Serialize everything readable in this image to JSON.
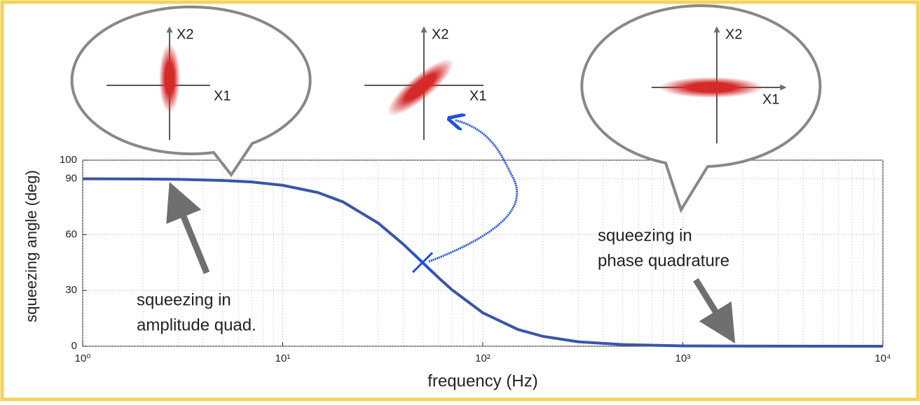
{
  "chart_data": {
    "type": "line",
    "x_label": "frequency (Hz)",
    "y_label": "squeezing angle (deg)",
    "log_x": true,
    "grid": true,
    "xlim": [
      1,
      10000
    ],
    "xticks": [
      {
        "value": 1,
        "label": "10⁰"
      },
      {
        "value": 10,
        "label": "10¹"
      },
      {
        "value": 100,
        "label": "10²"
      },
      {
        "value": 1000,
        "label": "10³"
      },
      {
        "value": 10000,
        "label": "10⁴"
      }
    ],
    "ylim": [
      0,
      100
    ],
    "yticks": [
      0,
      30,
      60,
      90,
      100
    ],
    "series": [
      {
        "color": "#3a55a8",
        "x": [
          1,
          2,
          3,
          5,
          7,
          10,
          15,
          20,
          30,
          40,
          50,
          60,
          70,
          100,
          150,
          200,
          300,
          500,
          1000,
          2000,
          10000
        ],
        "values": [
          90,
          89.9,
          89.7,
          89.1,
          88.3,
          86.5,
          82.6,
          77.6,
          66.2,
          54.9,
          45,
          36.9,
          30.4,
          18,
          9,
          5.3,
          2.4,
          0.9,
          0.2,
          0.1,
          0
        ]
      }
    ],
    "marker": {
      "x": 50,
      "y": 45,
      "color": "#1f4fe0"
    },
    "annotations": [
      {
        "lines": [
          "squeezing in",
          "amplitude quad."
        ]
      },
      {
        "lines": [
          "squeezing in",
          "phase quadrature"
        ]
      }
    ]
  },
  "insets": [
    {
      "x_label": "X1",
      "y_label": "X2"
    },
    {
      "x_label": "X1",
      "y_label": "X2"
    },
    {
      "x_label": "X1",
      "y_label": "X2"
    }
  ]
}
